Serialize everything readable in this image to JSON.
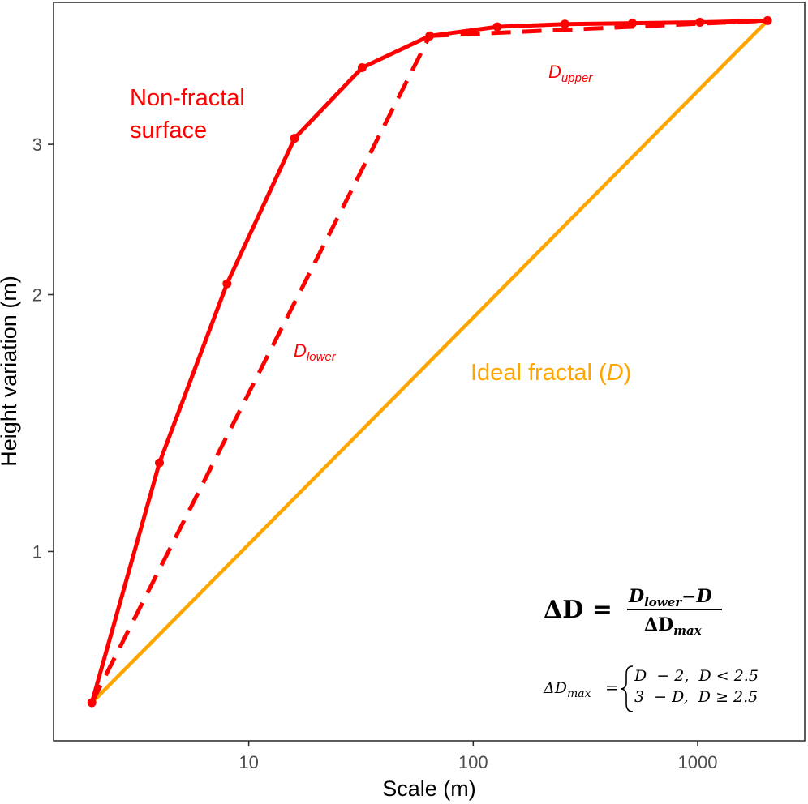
{
  "chart_data": {
    "type": "line",
    "x_scale": "log",
    "y_scale": "log",
    "xlabel": "Scale (m)",
    "ylabel": "Height variation (m)",
    "xlim": [
      1.35,
      3000
    ],
    "ylim": [
      0.6,
      4.4
    ],
    "x_ticks": [
      {
        "value": 10,
        "label": "10"
      },
      {
        "value": 100,
        "label": "100"
      },
      {
        "value": 1000,
        "label": "1000"
      }
    ],
    "y_ticks": [
      {
        "value": 1,
        "label": "1"
      },
      {
        "value": 2,
        "label": "2"
      },
      {
        "value": 3,
        "label": "3"
      }
    ],
    "grid": false,
    "series": [
      {
        "name": "Non-fractal surface",
        "style": "solid",
        "color": "#ff0000",
        "markers": true,
        "x": [
          2,
          4,
          8,
          16,
          32,
          64,
          128,
          256,
          512,
          1024,
          2048
        ],
        "y": [
          0.665,
          1.27,
          2.06,
          3.05,
          3.69,
          4.02,
          4.12,
          4.15,
          4.16,
          4.17,
          4.19
        ]
      },
      {
        "name": "D lower",
        "style": "dashed",
        "color": "#ff0000",
        "markers": false,
        "x": [
          2,
          64
        ],
        "y": [
          0.665,
          4.02
        ]
      },
      {
        "name": "D upper",
        "style": "dashed",
        "color": "#ff0000",
        "markers": false,
        "x": [
          64,
          2048
        ],
        "y": [
          4.02,
          4.19
        ]
      },
      {
        "name": "Ideal fractal (D)",
        "style": "solid",
        "color": "#ffa500",
        "markers": false,
        "x": [
          2,
          2048
        ],
        "y": [
          0.665,
          4.19
        ]
      }
    ],
    "annotations": {
      "non_fractal_line1": "Non-fractal",
      "non_fractal_line2": "surface",
      "d_lower_main": "D",
      "d_lower_sub": "lower",
      "d_upper_main": "D",
      "d_upper_sub": "upper",
      "ideal_prefix": "Ideal fractal (",
      "ideal_d": "D",
      "ideal_suffix": ")"
    },
    "formula": {
      "lhs": "ΔD =",
      "numerator_d": "D",
      "numerator_sub": "lower",
      "numerator_rest": "−D",
      "denominator_main": "ΔD",
      "denominator_sub": "max",
      "dmax_lhs_main": "ΔD",
      "dmax_lhs_sub": "max",
      "dmax_eq": "=",
      "case1": "D  − 2,  D < 2.5",
      "case2": "3  − D,  D ≥ 2.5"
    },
    "colors": {
      "non_fractal": "#ff0000",
      "ideal": "#ffa500",
      "axis": "#333333",
      "tick_text": "#4d4d4d"
    }
  }
}
